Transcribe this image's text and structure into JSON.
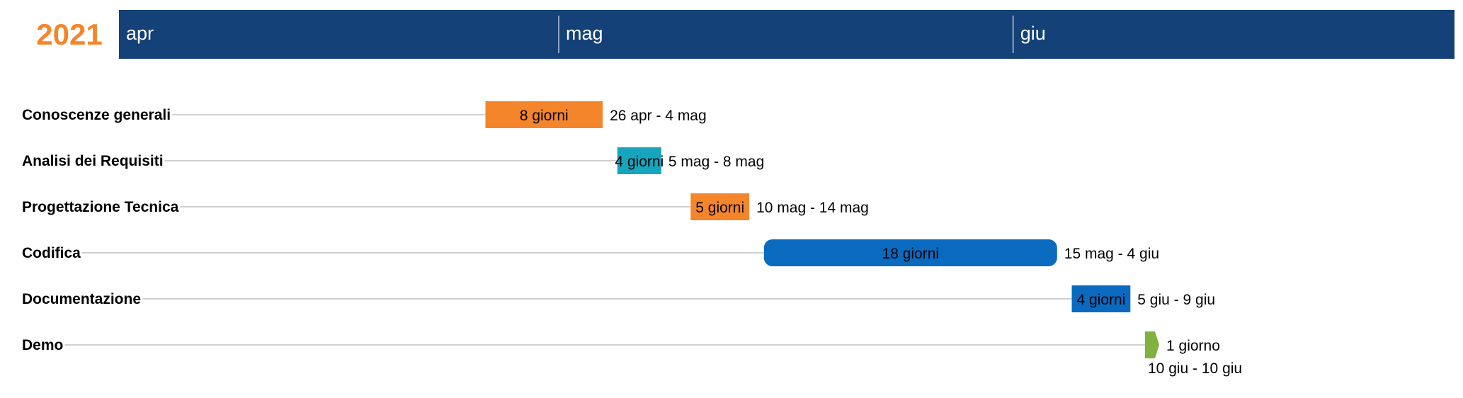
{
  "chart_data": {
    "type": "gantt",
    "year": "2021",
    "months": [
      {
        "label": "apr",
        "start": "2021-04-01"
      },
      {
        "label": "mag",
        "start": "2021-05-01"
      },
      {
        "label": "giu",
        "start": "2021-06-01"
      }
    ],
    "x_range": [
      "2021-04-01",
      "2021-06-30"
    ],
    "tasks": [
      {
        "name": "Conoscenze generali",
        "start": "2021-04-26",
        "end": "2021-05-04",
        "duration": "8 giorni",
        "range": "26 apr - 4 mag",
        "color": "#F5852B",
        "shape": "rect"
      },
      {
        "name": "Analisi dei Requisiti",
        "start": "2021-05-05",
        "end": "2021-05-08",
        "duration": "4 giorni",
        "range": "5 mag - 8 mag",
        "color": "#16A5BD",
        "shape": "rect"
      },
      {
        "name": "Progettazione Tecnica",
        "start": "2021-05-10",
        "end": "2021-05-14",
        "duration": "5 giorni",
        "range": "10 mag - 14 mag",
        "color": "#F5852B",
        "shape": "rect"
      },
      {
        "name": "Codifica",
        "start": "2021-05-15",
        "end": "2021-06-04",
        "duration": "18 giorni",
        "range": "15 mag - 4 giu",
        "color": "#0A6AC0",
        "shape": "rounded"
      },
      {
        "name": "Documentazione",
        "start": "2021-06-05",
        "end": "2021-06-09",
        "duration": "4 giorni",
        "range": "5 giu - 9 giu",
        "color": "#0A6AC0",
        "shape": "rect"
      },
      {
        "name": "Demo",
        "start": "2021-06-10",
        "end": "2021-06-10",
        "duration": "1 giorno",
        "range": "10 giu - 10 giu",
        "color": "#7FB23F",
        "shape": "milestone"
      }
    ]
  },
  "colors": {
    "header_bg": "#144177",
    "year_text": "#F5852B",
    "guide_line": "#D0D0D0",
    "month_divider": "#8FA3BE"
  }
}
